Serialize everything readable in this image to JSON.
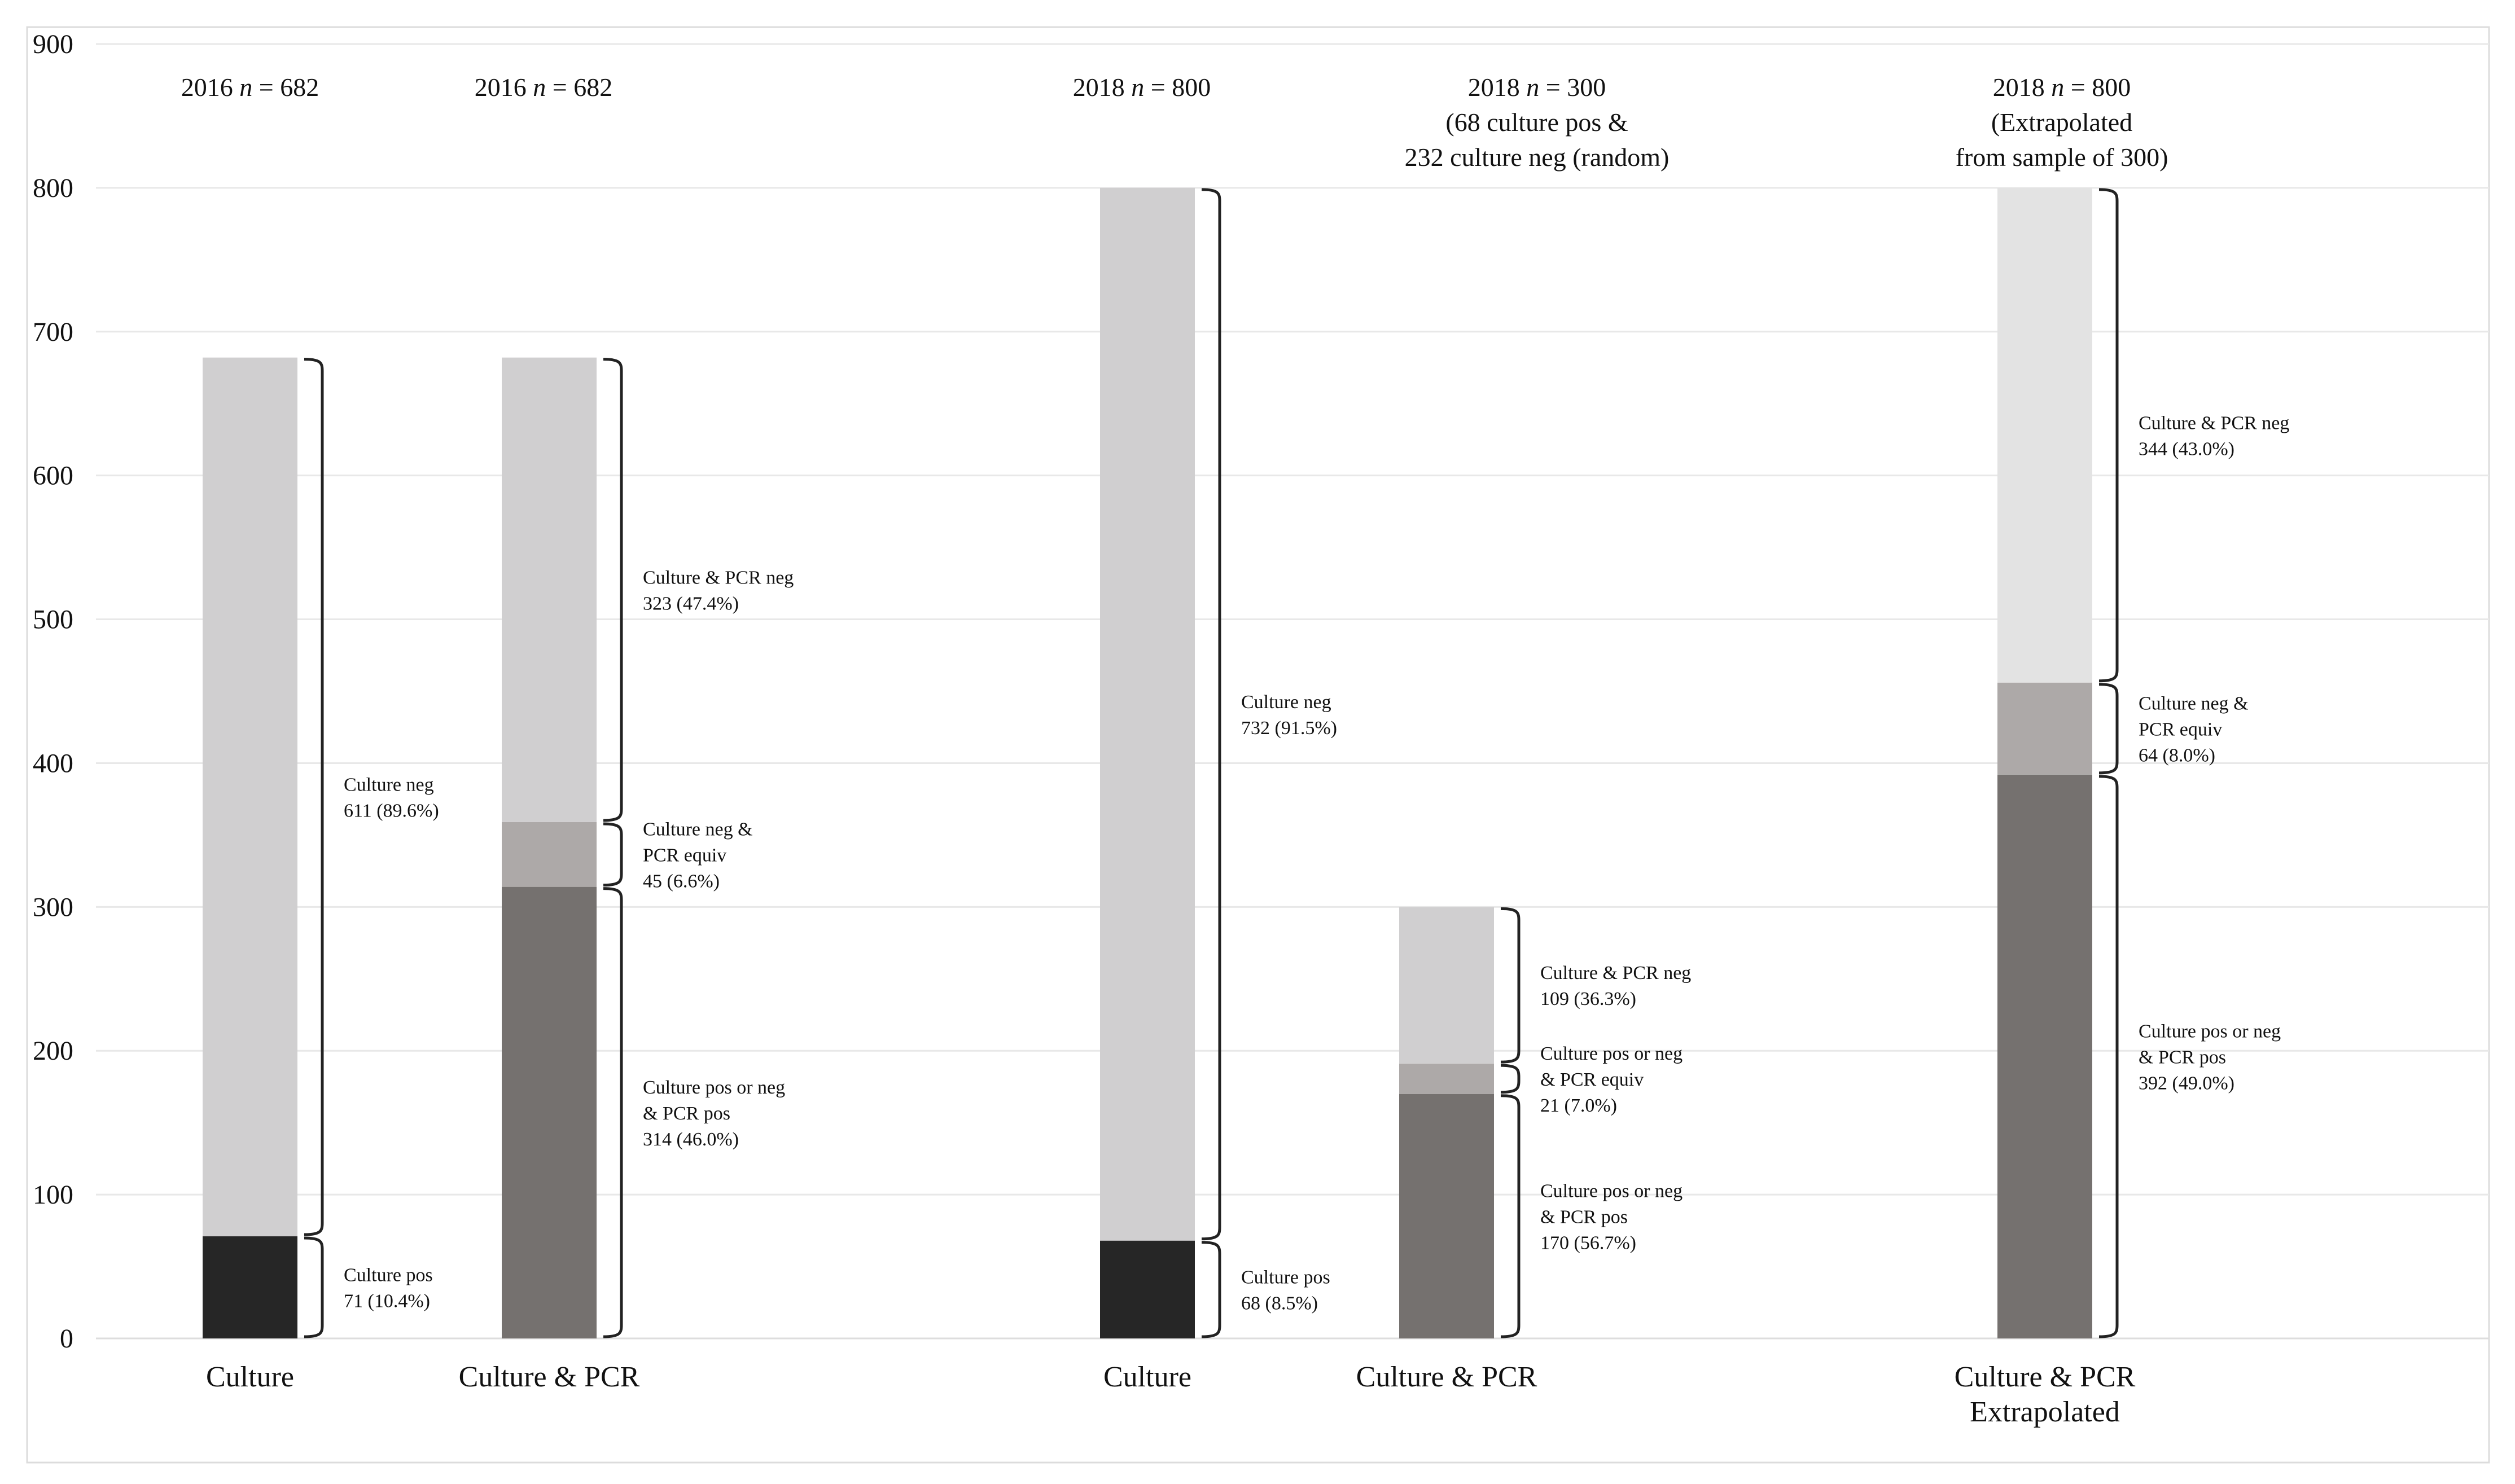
{
  "chart_data": {
    "type": "bar",
    "stacked": true,
    "ylim": [
      0,
      900
    ],
    "yticks": [
      0,
      100,
      200,
      300,
      400,
      500,
      600,
      700,
      800,
      900
    ],
    "grid": true,
    "colors": {
      "culture_pos": "#262626",
      "culture_neg": "#d0cfd0",
      "pcr_pos": "#75716f",
      "pcr_equiv": "#ada9a8",
      "pcr_neg": "#d0cfd0",
      "pcr_neg_extrapolated": "#e3e3e3"
    },
    "bars": [
      {
        "label": "Culture",
        "header_lines": [
          [
            "2016 ",
            "n",
            " = 682"
          ]
        ],
        "segments": [
          {
            "value": 71,
            "color_key": "culture_pos",
            "label_lines": [
              "Culture pos",
              "71 (10.4%)"
            ]
          },
          {
            "value": 611,
            "color_key": "culture_neg",
            "label_lines": [
              "Culture neg",
              "611 (89.6%)"
            ]
          }
        ]
      },
      {
        "label": "Culture & PCR",
        "header_lines": [
          [
            "2016 ",
            "n",
            " = 682"
          ]
        ],
        "segments": [
          {
            "value": 314,
            "color_key": "pcr_pos",
            "label_lines": [
              "Culture pos or neg",
              "& PCR pos",
              "314 (46.0%)"
            ]
          },
          {
            "value": 45,
            "color_key": "pcr_equiv",
            "label_lines": [
              "Culture neg &",
              "PCR equiv",
              "45 (6.6%)"
            ]
          },
          {
            "value": 323,
            "color_key": "pcr_neg",
            "label_lines": [
              "Culture & PCR neg",
              "323 (47.4%)"
            ]
          }
        ]
      },
      {
        "label": "Culture",
        "header_lines": [
          [
            "2018 ",
            "n",
            " = 800"
          ]
        ],
        "segments": [
          {
            "value": 68,
            "color_key": "culture_pos",
            "label_lines": [
              "Culture pos",
              "68 (8.5%)"
            ]
          },
          {
            "value": 732,
            "color_key": "culture_neg",
            "label_lines": [
              "Culture neg",
              "732 (91.5%)"
            ]
          }
        ]
      },
      {
        "label": "Culture & PCR",
        "header_lines": [
          [
            "2018 ",
            "n",
            " = 300"
          ],
          [
            "(68 culture pos &"
          ],
          [
            "232 culture neg (random)"
          ]
        ],
        "segments": [
          {
            "value": 170,
            "color_key": "pcr_pos",
            "label_lines": [
              "Culture pos or neg",
              "& PCR pos",
              "170 (56.7%)"
            ]
          },
          {
            "value": 21,
            "color_key": "pcr_equiv",
            "label_lines": [
              "Culture pos or neg",
              "& PCR equiv",
              "21 (7.0%)"
            ]
          },
          {
            "value": 109,
            "color_key": "pcr_neg",
            "label_lines": [
              "Culture & PCR neg",
              "109 (36.3%)"
            ]
          }
        ]
      },
      {
        "label": "Culture & PCR",
        "label2": "Extrapolated",
        "header_lines": [
          [
            "2018 ",
            "n",
            " = 800"
          ],
          [
            "(Extrapolated"
          ],
          [
            "from sample of 300)"
          ]
        ],
        "segments": [
          {
            "value": 392,
            "color_key": "pcr_pos",
            "label_lines": [
              "Culture pos or neg",
              "& PCR pos",
              "392 (49.0%)"
            ]
          },
          {
            "value": 64,
            "color_key": "pcr_equiv",
            "label_lines": [
              "Culture neg &",
              "PCR equiv",
              "64 (8.0%)"
            ]
          },
          {
            "value": 344,
            "color_key": "pcr_neg_extrapolated",
            "label_lines": [
              "Culture & PCR neg",
              "344 (43.0%)"
            ]
          }
        ]
      }
    ]
  }
}
